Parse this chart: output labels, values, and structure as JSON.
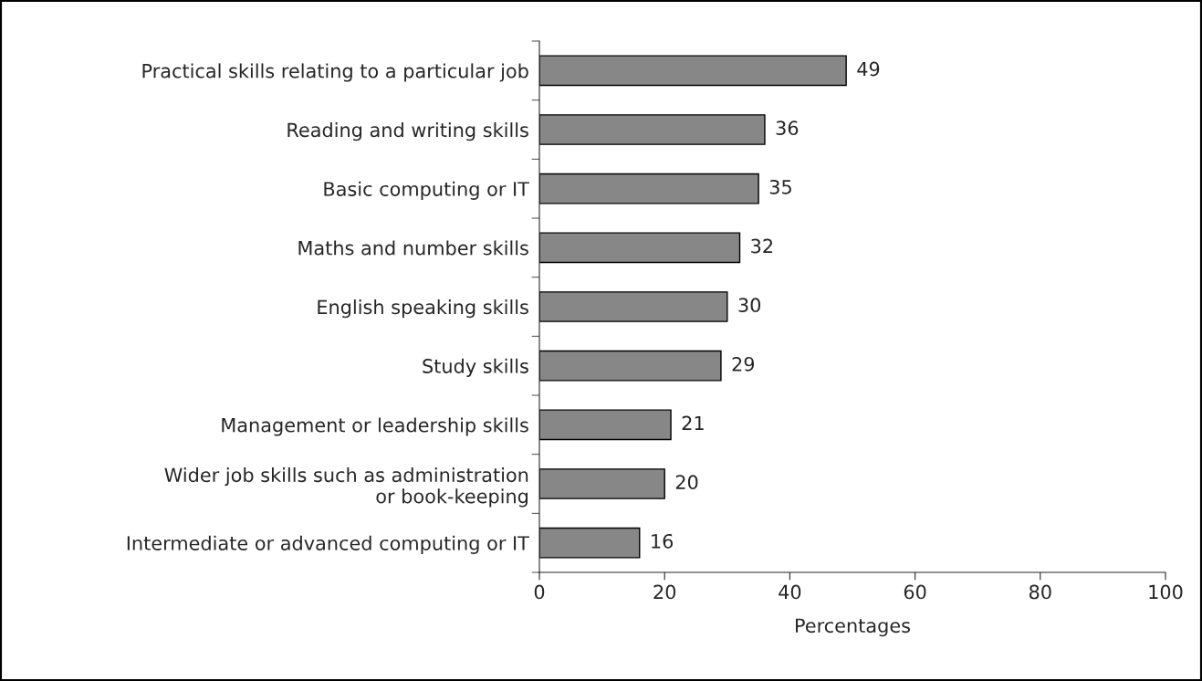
{
  "chart_data": {
    "type": "bar",
    "orientation": "horizontal",
    "xlabel": "Percentages",
    "categories": [
      "Practical skills relating to a particular job",
      "Reading and writing skills",
      "Basic computing or IT",
      "Maths and number skills",
      "English speaking skills",
      "Study skills",
      "Management or leadership skills",
      "Wider job skills such as administration\nor book-keeping",
      "Intermediate or advanced computing or IT"
    ],
    "values": [
      49,
      36,
      35,
      32,
      30,
      29,
      21,
      20,
      16
    ],
    "color": "#878787",
    "xlim": [
      0,
      100
    ],
    "xticks": [
      0,
      20,
      40,
      60,
      80,
      100
    ],
    "data_labels": true,
    "grid": false,
    "legend": false
  }
}
